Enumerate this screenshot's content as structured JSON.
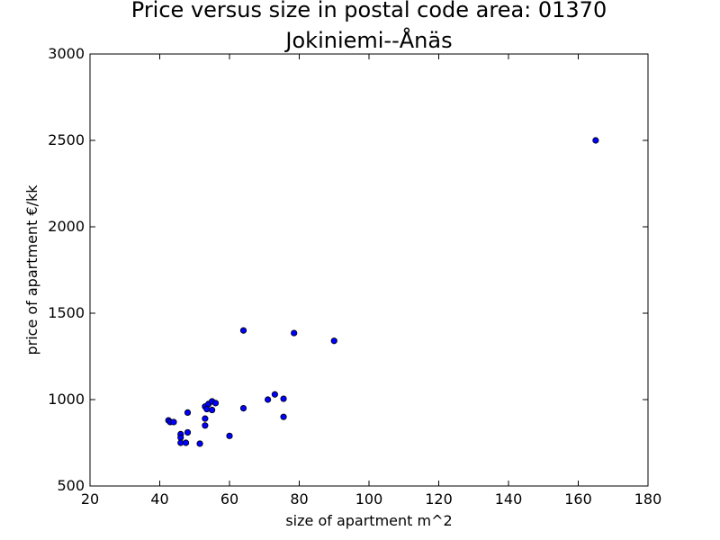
{
  "chart_data": {
    "type": "scatter",
    "title_line1": "Price versus size in postal code area: 01370",
    "title_line2": "Jokiniemi--Ånäs",
    "xlabel": "size of apartment m^2",
    "ylabel": "price of apartment €/kk",
    "xlim": [
      20,
      180
    ],
    "ylim": [
      500,
      3000
    ],
    "xticks": [
      "20",
      "40",
      "60",
      "80",
      "100",
      "120",
      "140",
      "160",
      "180"
    ],
    "yticks": [
      "500",
      "1000",
      "1500",
      "2000",
      "2500",
      "3000"
    ],
    "grid": false,
    "marker_color": "#0000ff",
    "marker_edge": "#000000",
    "points": [
      {
        "x": 42.5,
        "y": 880
      },
      {
        "x": 43.0,
        "y": 870
      },
      {
        "x": 44.0,
        "y": 870
      },
      {
        "x": 46.0,
        "y": 800
      },
      {
        "x": 46.0,
        "y": 780
      },
      {
        "x": 46.0,
        "y": 750
      },
      {
        "x": 47.5,
        "y": 750
      },
      {
        "x": 48.0,
        "y": 925
      },
      {
        "x": 48.0,
        "y": 810
      },
      {
        "x": 51.5,
        "y": 745
      },
      {
        "x": 53.0,
        "y": 890
      },
      {
        "x": 53.0,
        "y": 850
      },
      {
        "x": 53.0,
        "y": 960
      },
      {
        "x": 53.5,
        "y": 945
      },
      {
        "x": 54.0,
        "y": 975
      },
      {
        "x": 55.0,
        "y": 990
      },
      {
        "x": 55.0,
        "y": 940
      },
      {
        "x": 56.0,
        "y": 980
      },
      {
        "x": 60.0,
        "y": 790
      },
      {
        "x": 64.0,
        "y": 1400
      },
      {
        "x": 64.0,
        "y": 950
      },
      {
        "x": 71.0,
        "y": 1000
      },
      {
        "x": 73.0,
        "y": 1030
      },
      {
        "x": 75.5,
        "y": 1005
      },
      {
        "x": 75.5,
        "y": 900
      },
      {
        "x": 78.5,
        "y": 1385
      },
      {
        "x": 90.0,
        "y": 1340
      },
      {
        "x": 165.0,
        "y": 2500
      }
    ]
  }
}
